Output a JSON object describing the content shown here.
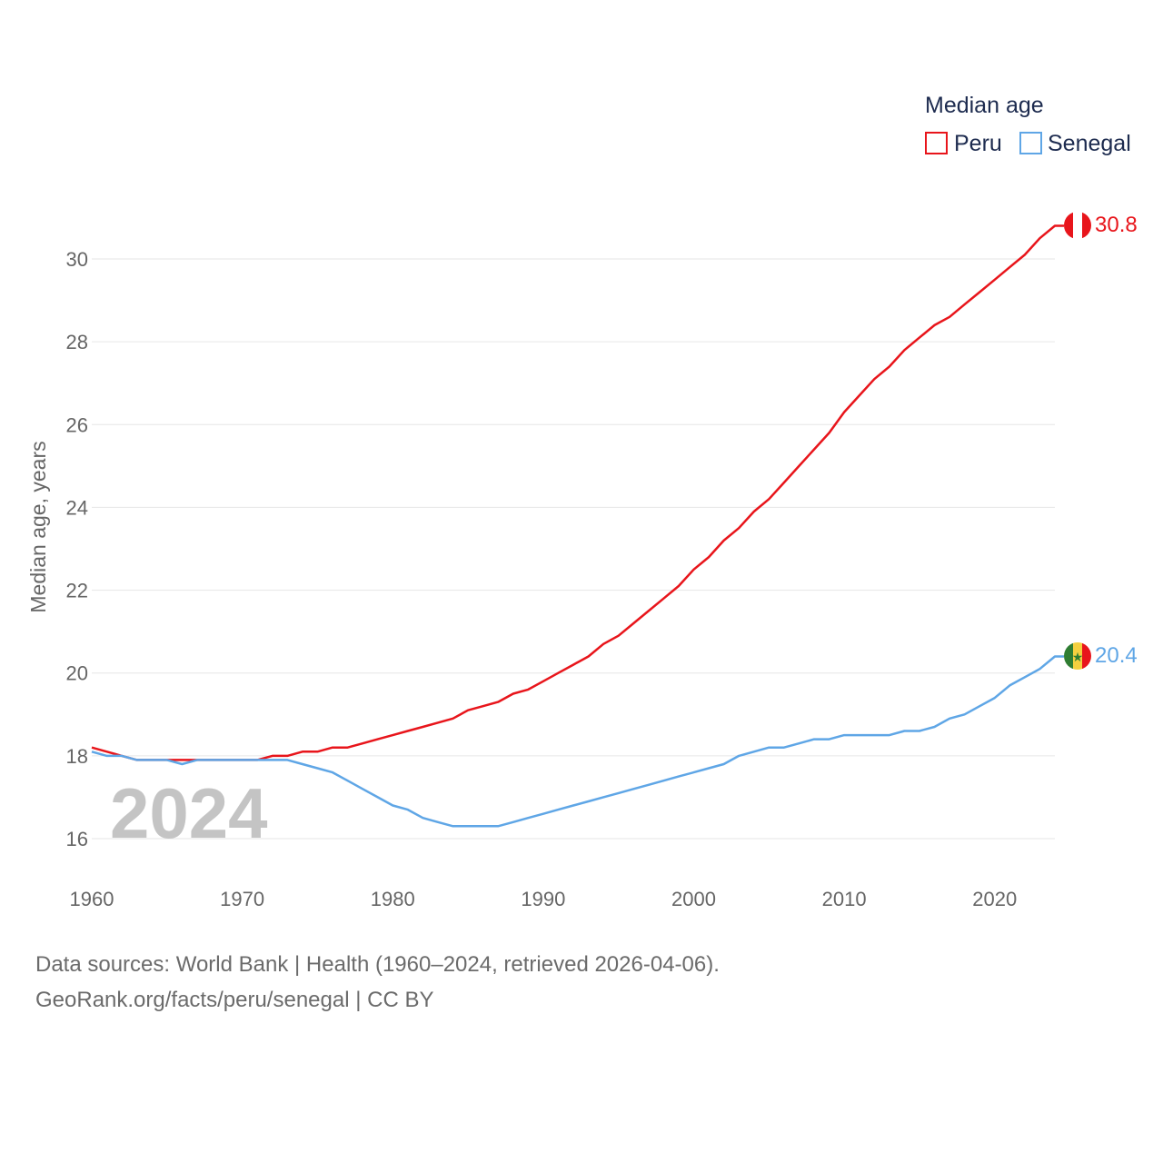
{
  "legend": {
    "title": "Median age",
    "items": [
      {
        "label": "Peru",
        "color": "#e8151b"
      },
      {
        "label": "Senegal",
        "color": "#5fa6e6"
      }
    ]
  },
  "year_watermark": "2024",
  "end_labels": {
    "peru": "30.8",
    "senegal": "20.4"
  },
  "footer": {
    "line1": "Data sources: World Bank | Health (1960–2024, retrieved 2026-04-06).",
    "line2": "GeoRank.org/facts/peru/senegal | CC BY"
  },
  "chart_data": {
    "type": "line",
    "title": "Median age",
    "xlabel": "",
    "ylabel": "Median age, years",
    "xlim": [
      1960,
      2024
    ],
    "ylim": [
      15.5,
      31
    ],
    "x_ticks": [
      1960,
      1970,
      1980,
      1990,
      2000,
      2010,
      2020
    ],
    "y_ticks": [
      16,
      18,
      20,
      22,
      24,
      26,
      28,
      30
    ],
    "grid": true,
    "legend_position": "top-right",
    "x": [
      1960,
      1961,
      1962,
      1963,
      1964,
      1965,
      1966,
      1967,
      1968,
      1969,
      1970,
      1971,
      1972,
      1973,
      1974,
      1975,
      1976,
      1977,
      1978,
      1979,
      1980,
      1981,
      1982,
      1983,
      1984,
      1985,
      1986,
      1987,
      1988,
      1989,
      1990,
      1991,
      1992,
      1993,
      1994,
      1995,
      1996,
      1997,
      1998,
      1999,
      2000,
      2001,
      2002,
      2003,
      2004,
      2005,
      2006,
      2007,
      2008,
      2009,
      2010,
      2011,
      2012,
      2013,
      2014,
      2015,
      2016,
      2017,
      2018,
      2019,
      2020,
      2021,
      2022,
      2023,
      2024
    ],
    "series": [
      {
        "name": "Peru",
        "color": "#e8151b",
        "values": [
          18.2,
          18.1,
          18.0,
          17.9,
          17.9,
          17.9,
          17.9,
          17.9,
          17.9,
          17.9,
          17.9,
          17.9,
          18.0,
          18.0,
          18.1,
          18.1,
          18.2,
          18.2,
          18.3,
          18.4,
          18.5,
          18.6,
          18.7,
          18.8,
          18.9,
          19.1,
          19.2,
          19.3,
          19.5,
          19.6,
          19.8,
          20.0,
          20.2,
          20.4,
          20.7,
          20.9,
          21.2,
          21.5,
          21.8,
          22.1,
          22.5,
          22.8,
          23.2,
          23.5,
          23.9,
          24.2,
          24.6,
          25.0,
          25.4,
          25.8,
          26.3,
          26.7,
          27.1,
          27.4,
          27.8,
          28.1,
          28.4,
          28.6,
          28.9,
          29.2,
          29.5,
          29.8,
          30.1,
          30.5,
          30.8
        ]
      },
      {
        "name": "Senegal",
        "color": "#5fa6e6",
        "values": [
          18.1,
          18.0,
          18.0,
          17.9,
          17.9,
          17.9,
          17.8,
          17.9,
          17.9,
          17.9,
          17.9,
          17.9,
          17.9,
          17.9,
          17.8,
          17.7,
          17.6,
          17.4,
          17.2,
          17.0,
          16.8,
          16.7,
          16.5,
          16.4,
          16.3,
          16.3,
          16.3,
          16.3,
          16.4,
          16.5,
          16.6,
          16.7,
          16.8,
          16.9,
          17.0,
          17.1,
          17.2,
          17.3,
          17.4,
          17.5,
          17.6,
          17.7,
          17.8,
          18.0,
          18.1,
          18.2,
          18.2,
          18.3,
          18.4,
          18.4,
          18.5,
          18.5,
          18.5,
          18.5,
          18.6,
          18.6,
          18.7,
          18.9,
          19.0,
          19.2,
          19.4,
          19.7,
          19.9,
          20.1,
          20.4
        ]
      }
    ]
  }
}
